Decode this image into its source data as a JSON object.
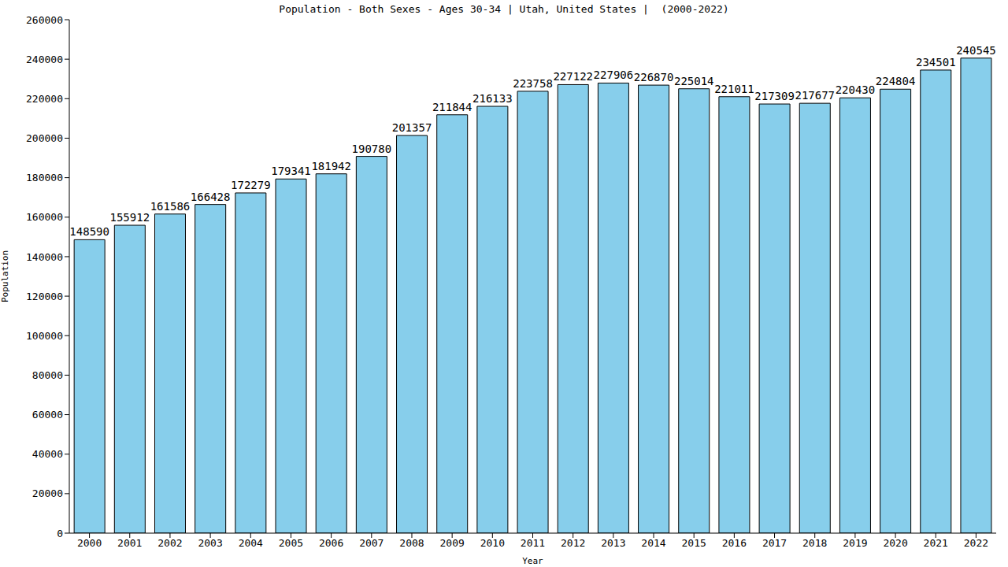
{
  "chart_data": {
    "type": "bar",
    "title": "Population - Both Sexes - Ages 30-34 | Utah, United States |  (2000-2022)",
    "x_label": "Year",
    "y_label": "Population",
    "categories": [
      "2000",
      "2001",
      "2002",
      "2003",
      "2004",
      "2005",
      "2006",
      "2007",
      "2008",
      "2009",
      "2010",
      "2011",
      "2012",
      "2013",
      "2014",
      "2015",
      "2016",
      "2017",
      "2018",
      "2019",
      "2020",
      "2021",
      "2022"
    ],
    "values": [
      148590,
      155912,
      161586,
      166428,
      172279,
      179341,
      181942,
      190780,
      201357,
      211844,
      216133,
      223758,
      227122,
      227906,
      226870,
      225014,
      221011,
      217309,
      217677,
      220430,
      224804,
      234501,
      240545
    ],
    "color": "#87ceeb",
    "ylim": [
      0,
      260000
    ],
    "yticks": [
      0,
      20000,
      40000,
      60000,
      80000,
      100000,
      120000,
      140000,
      160000,
      180000,
      200000,
      220000,
      240000,
      260000
    ],
    "grid": false,
    "data_labels": true
  }
}
